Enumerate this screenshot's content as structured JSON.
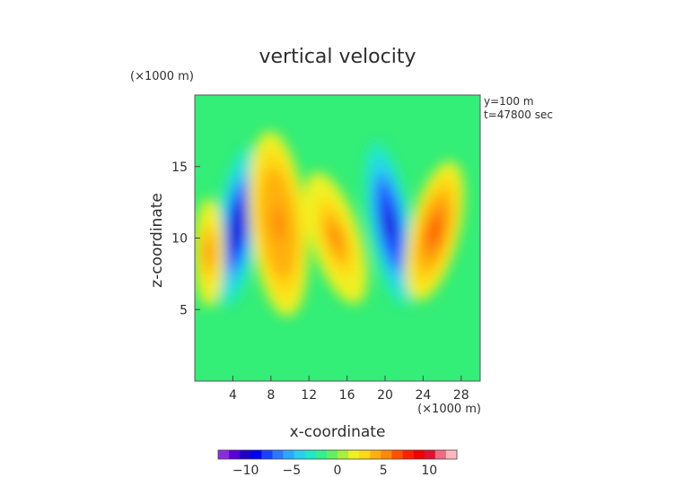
{
  "chart_data": {
    "type": "heatmap",
    "title": "vertical velocity",
    "xlabel": "x-coordinate",
    "ylabel": "z-coordinate",
    "x_unit": "(×1000 m)",
    "y_unit": "(×1000 m)",
    "annotations": [
      "y=100 m",
      "t=47800 sec"
    ],
    "xlim": [
      0,
      30
    ],
    "ylim": [
      0,
      20
    ],
    "x_ticks": [
      4,
      8,
      12,
      16,
      20,
      24,
      28
    ],
    "x_tick_labels": [
      "4",
      "8",
      "12",
      "16",
      "20",
      "24",
      "28"
    ],
    "y_ticks": [
      5,
      10,
      15
    ],
    "y_tick_labels": [
      "5",
      "10",
      "15"
    ],
    "colorbar": {
      "min": -13,
      "max": 13,
      "ticks": [
        -10,
        -5,
        0,
        5,
        10
      ],
      "tick_labels": [
        "−10",
        "−5",
        "0",
        "5",
        "10"
      ],
      "colors": [
        "#8a2be2",
        "#5a00d8",
        "#1e00c8",
        "#0000f0",
        "#1a40ff",
        "#2a78ff",
        "#2aa8ff",
        "#28d0f0",
        "#20e8c8",
        "#30f090",
        "#60f060",
        "#a8f038",
        "#f0f020",
        "#ffd818",
        "#ffb010",
        "#ff8808",
        "#ff5000",
        "#ff2000",
        "#f00000",
        "#e01030",
        "#f06a80",
        "#ffb8c0"
      ]
    },
    "grid": false,
    "features": [
      {
        "x": 4.5,
        "z": 10.8,
        "value": -11,
        "kind": "downdraft"
      },
      {
        "x": 8.8,
        "z": 11.0,
        "value": 6,
        "kind": "updraft"
      },
      {
        "x": 14.8,
        "z": 10.0,
        "value": 5,
        "kind": "updraft"
      },
      {
        "x": 20.5,
        "z": 11.0,
        "value": -10,
        "kind": "downdraft"
      },
      {
        "x": 25.2,
        "z": 10.5,
        "value": 7,
        "kind": "updraft"
      },
      {
        "x": 1.5,
        "z": 9.0,
        "value": 5,
        "kind": "updraft"
      }
    ]
  }
}
